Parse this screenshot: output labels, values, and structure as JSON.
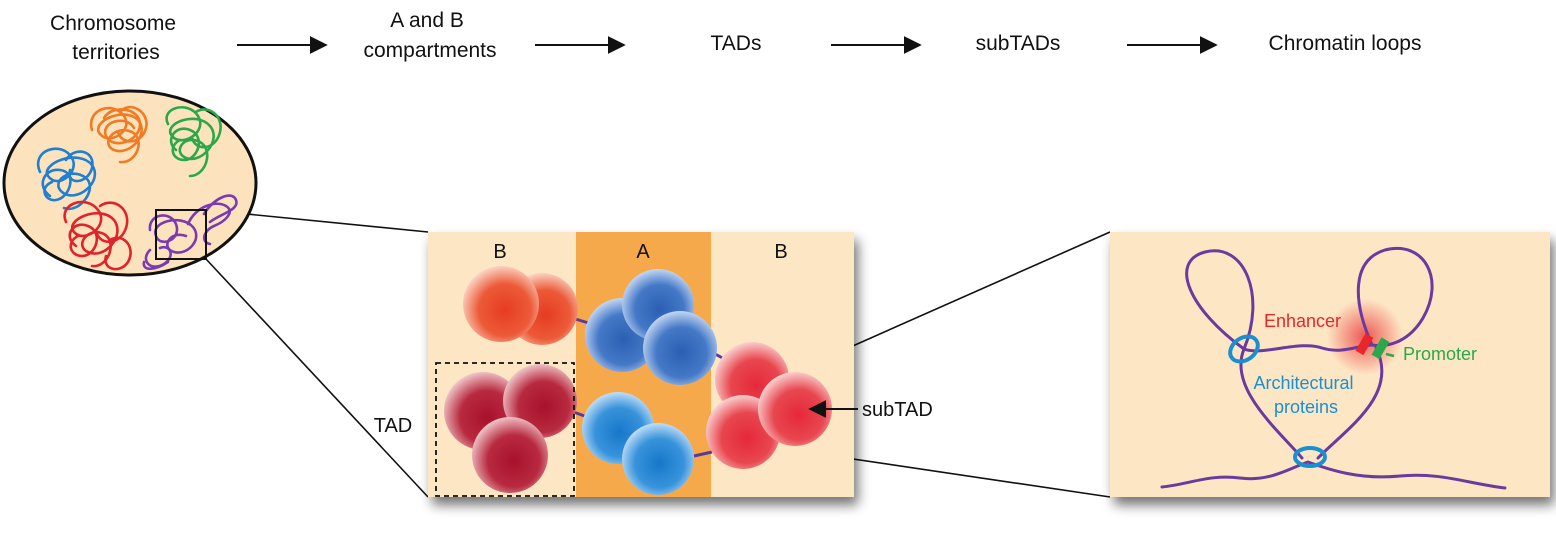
{
  "hierarchy": {
    "steps": [
      {
        "lines": [
          "Chromosome",
          "territories"
        ]
      },
      {
        "lines": [
          "A and B",
          "compartments"
        ]
      },
      {
        "lines": [
          "TADs"
        ]
      },
      {
        "lines": [
          "subTADs"
        ]
      },
      {
        "lines": [
          "Chromatin loops"
        ]
      }
    ]
  },
  "compartments": {
    "left_label": "B",
    "middle_label": "A",
    "right_label": "B",
    "tad_label": "TAD",
    "subtad_label": "subTAD"
  },
  "loops": {
    "enhancer_label": "Enhancer",
    "promoter_label": "Promoter",
    "architectural_lines": [
      "Architectural",
      "proteins"
    ]
  },
  "colors": {
    "panel_bg": "#fde6c4",
    "compartment_a": "#f6a94b",
    "enhancer": "#e8262b",
    "promoter": "#2aa84a",
    "architectural": "#1b8fd0",
    "chromatin": "#6a3a9e",
    "red_sphere": "#e23a3a",
    "dark_red_sphere": "#b81f32",
    "orange_sphere": "#e8502a",
    "blue_sphere": "#2e6fc0",
    "light_blue_sphere": "#1f86d2"
  }
}
